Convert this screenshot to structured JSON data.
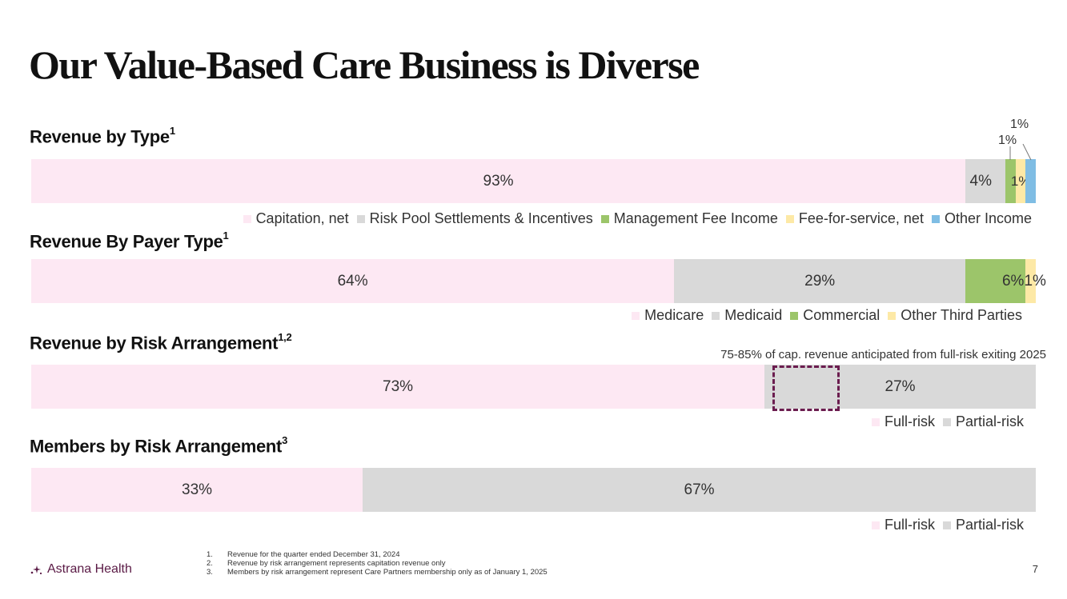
{
  "title": "Our Value-Based Care Business is Diverse",
  "chart_data": [
    {
      "type": "bar",
      "orientation": "horizontal-stacked-100",
      "title": "Revenue by Type",
      "title_sup": "1",
      "series": [
        {
          "name": "Capitation, net",
          "value": 93,
          "label": "93%",
          "color": "#fde8f3"
        },
        {
          "name": "Risk Pool Settlements & Incentives",
          "value": 4,
          "label": "4%",
          "color": "#d9d9d9"
        },
        {
          "name": "Management Fee Income",
          "value": 1,
          "label": "1%",
          "color": "#9cc56a"
        },
        {
          "name": "Fee-for-service, net",
          "value": 1,
          "label": "1%",
          "color": "#fde9a6"
        },
        {
          "name": "Other Income",
          "value": 1,
          "label": "1%",
          "color": "#7fbde4"
        }
      ]
    },
    {
      "type": "bar",
      "orientation": "horizontal-stacked-100",
      "title": "Revenue By Payer Type",
      "title_sup": "1",
      "series": [
        {
          "name": "Medicare",
          "value": 64,
          "label": "64%",
          "color": "#fde8f3"
        },
        {
          "name": "Medicaid",
          "value": 29,
          "label": "29%",
          "color": "#d9d9d9"
        },
        {
          "name": "Commercial",
          "value": 6,
          "label": "6%",
          "color": "#9cc56a"
        },
        {
          "name": "Other Third Parties",
          "value": 1,
          "label": "1%",
          "color": "#fde9a6"
        }
      ]
    },
    {
      "type": "bar",
      "orientation": "horizontal-stacked-100",
      "title": "Revenue by Risk Arrangement",
      "title_sup": "1,2",
      "annotation": "75-85% of cap. revenue anticipated from full-risk exiting 2025",
      "series": [
        {
          "name": "Full-risk",
          "value": 73,
          "label": "73%",
          "color": "#fde8f3"
        },
        {
          "name": "Partial-risk",
          "value": 27,
          "label": "27%",
          "color": "#d9d9d9"
        }
      ]
    },
    {
      "type": "bar",
      "orientation": "horizontal-stacked-100",
      "title": "Members by Risk Arrangement",
      "title_sup": "3",
      "series": [
        {
          "name": "Full-risk",
          "value": 33,
          "label": "33%",
          "color": "#fde8f3"
        },
        {
          "name": "Partial-risk",
          "value": 67,
          "label": "67%",
          "color": "#d9d9d9"
        }
      ]
    }
  ],
  "footer": {
    "logo": "Astrana Health",
    "footnotes": [
      {
        "num": "1.",
        "text": "Revenue for the quarter ended December 31, 2024"
      },
      {
        "num": "2.",
        "text": "Revenue by risk arrangement represents capitation revenue only"
      },
      {
        "num": "3.",
        "text": "Members by risk arrangement represent Care Partners membership only as of January 1, 2025"
      }
    ],
    "page_number": "7"
  },
  "icons": {
    "logo": "astrana-sparkle-icon"
  },
  "colors": {
    "brand": "#5a1a45",
    "dashed_box": "#6b1d4f"
  }
}
